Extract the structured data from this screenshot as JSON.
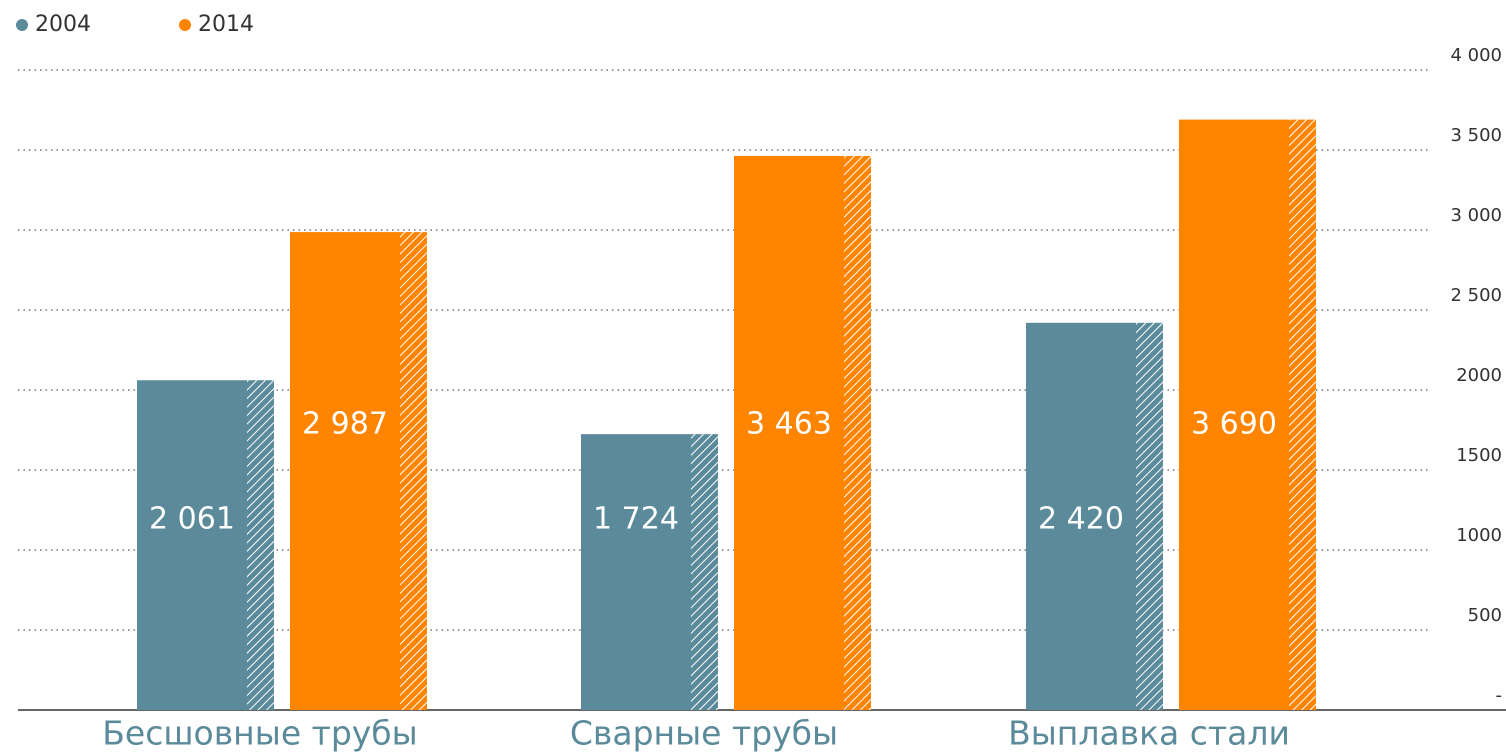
{
  "chart_data": {
    "type": "bar",
    "categories": [
      "Бесшовные трубы",
      "Сварные трубы",
      "Выплавка стали"
    ],
    "series": [
      {
        "name": "2004",
        "color": "#5b8a9b",
        "values": [
          2061,
          1724,
          2420
        ],
        "value_labels": [
          "2 061",
          "1 724",
          "2 420"
        ]
      },
      {
        "name": "2014",
        "color": "#ff8400",
        "values": [
          2987,
          3463,
          3690
        ],
        "value_labels": [
          "2 987",
          "3 463",
          "3 690"
        ]
      }
    ],
    "ylim": [
      0,
      4000
    ],
    "yticks": [
      {
        "value": 0,
        "label": "-"
      },
      500,
      1000,
      1500,
      2000,
      {
        "value": 2500,
        "label": "2 500"
      },
      {
        "value": 3000,
        "label": "3 000"
      },
      {
        "value": 3500,
        "label": "3 500"
      },
      {
        "value": 4000,
        "label": "4 000"
      }
    ],
    "grid": true
  }
}
